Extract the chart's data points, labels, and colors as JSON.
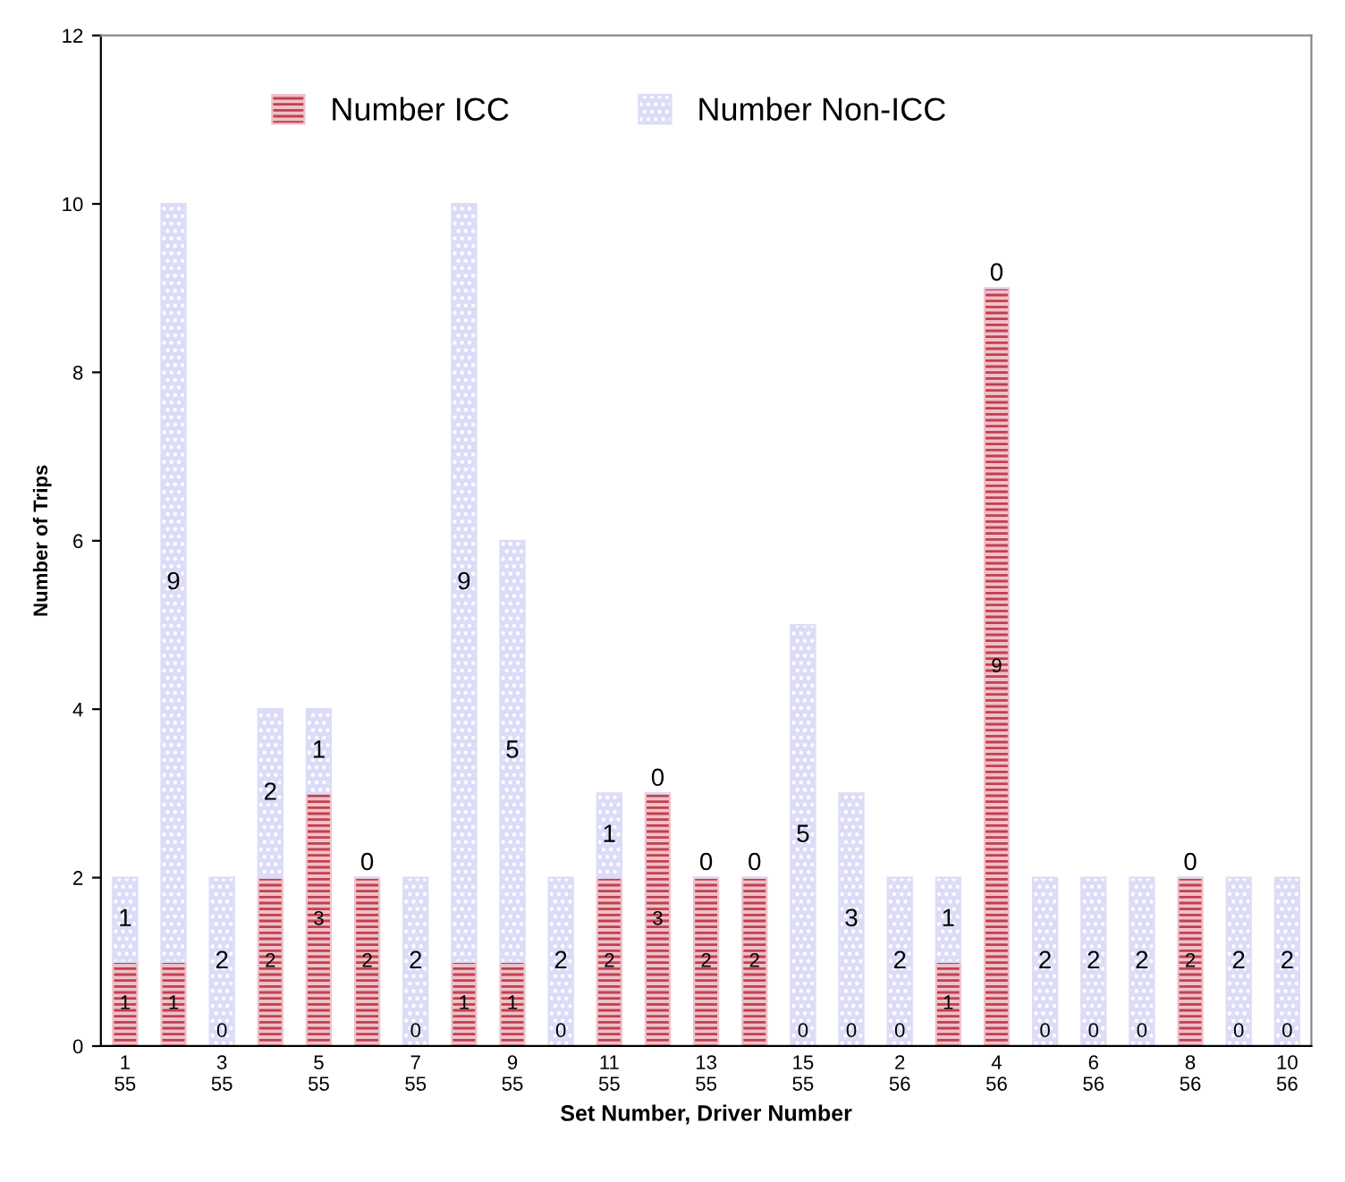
{
  "chart_data": {
    "type": "bar",
    "stacked": true,
    "xlabel": "Set Number, Driver Number",
    "ylabel": "Number of Trips",
    "categories": [
      "1\n55",
      null,
      "3\n55",
      null,
      "5\n55",
      null,
      "7\n55",
      null,
      "9\n55",
      null,
      "11\n55",
      null,
      "13\n55",
      null,
      "15\n55",
      null,
      "2\n56",
      null,
      "4\n56",
      null,
      "6\n56",
      null,
      "8\n56",
      null,
      "10\n56"
    ],
    "series": [
      {
        "name": "Number ICC",
        "color": "#f0c0c8",
        "values": [
          1,
          1,
          0,
          2,
          3,
          2,
          0,
          1,
          1,
          0,
          2,
          3,
          2,
          2,
          0,
          0,
          0,
          1,
          9,
          0,
          0,
          0,
          2,
          0,
          0
        ]
      },
      {
        "name": "Number Non-ICC",
        "color": "#dcdcf8",
        "values": [
          1,
          9,
          2,
          2,
          1,
          0,
          2,
          9,
          5,
          2,
          1,
          0,
          0,
          0,
          5,
          3,
          2,
          1,
          0,
          2,
          2,
          2,
          0,
          2,
          2
        ]
      }
    ],
    "ylim": [
      0,
      12
    ],
    "yticks": [
      0,
      2,
      4,
      6,
      8,
      10,
      12
    ],
    "data_labels": true,
    "legend": "top",
    "grid": false
  }
}
